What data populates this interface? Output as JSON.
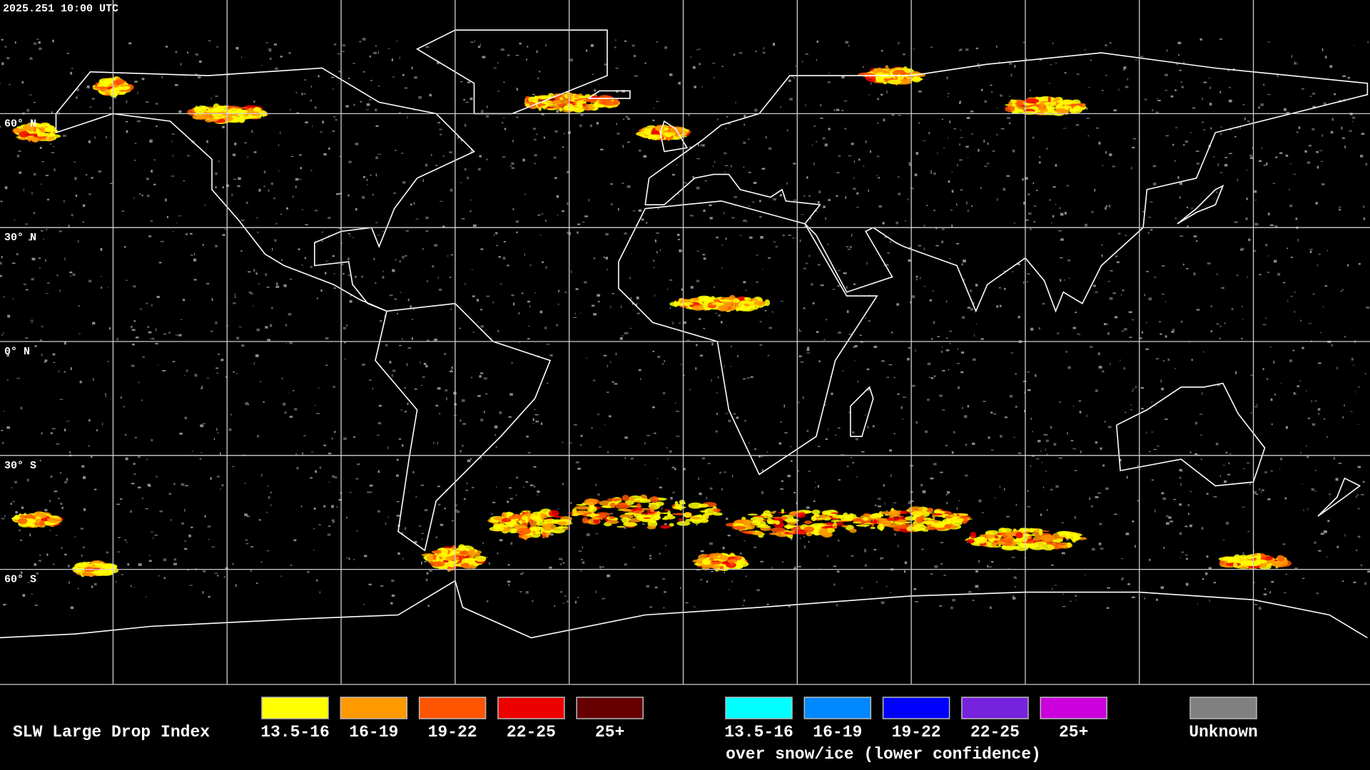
{
  "header": {
    "timestamp": "2025.251 10:00 UTC"
  },
  "map": {
    "lat_labels": [
      "60° N",
      "30° N",
      "0° N",
      "30° S",
      "60° S"
    ]
  },
  "legend": {
    "title": "SLW Large Drop Index",
    "items": [
      {
        "label": "13.5-16",
        "color": "#ffff00"
      },
      {
        "label": "16-19",
        "color": "#ff9900"
      },
      {
        "label": "19-22",
        "color": "#ff5500"
      },
      {
        "label": "22-25",
        "color": "#ee0000"
      },
      {
        "label": "25+",
        "color": "#660000"
      }
    ],
    "snow_items": [
      {
        "label": "13.5-16",
        "color": "#00ffff"
      },
      {
        "label": "16-19",
        "color": "#0088ff"
      },
      {
        "label": "19-22",
        "color": "#0000ff"
      },
      {
        "label": "22-25",
        "color": "#7722dd"
      },
      {
        "label": "25+",
        "color": "#cc00dd"
      }
    ],
    "snow_caption": "over snow/ice (lower confidence)",
    "unknown": {
      "label": "Unknown",
      "color": "#808080"
    }
  }
}
